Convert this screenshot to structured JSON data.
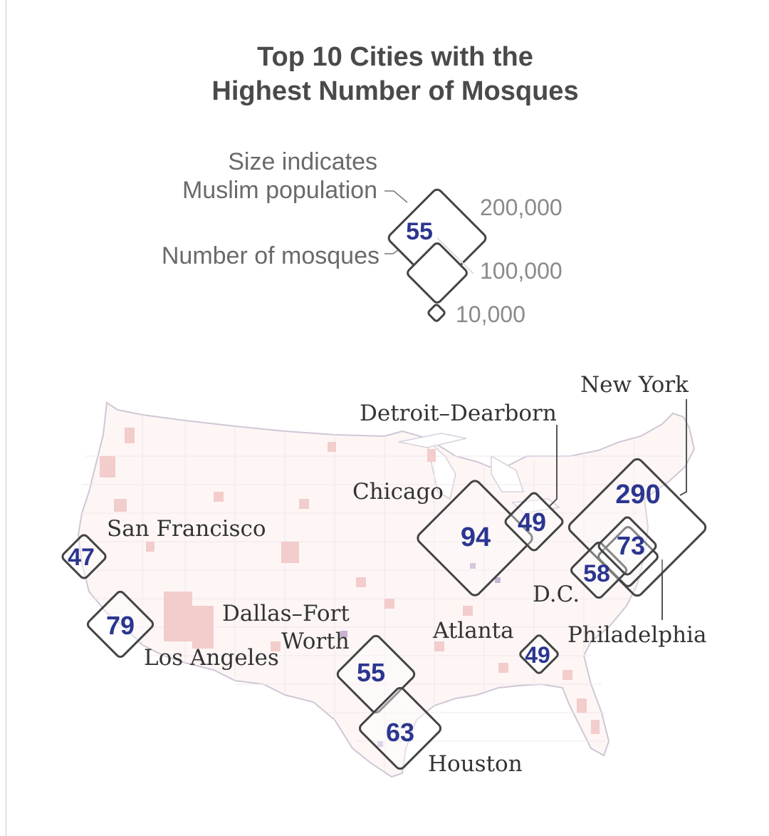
{
  "title": {
    "line1": "Top 10 Cities with the",
    "line2": "Highest Number of Mosques"
  },
  "legend": {
    "size_label_line1": "Size indicates",
    "size_label_line2": "Muslim population",
    "count_label": "Number of mosques",
    "sample_count": "55",
    "population_ticks": [
      "200,000",
      "100,000",
      "10,000"
    ]
  },
  "colors": {
    "count_text": "#2b3690",
    "diamond_stroke": "#444444",
    "county_shading": "#f2c9c9",
    "county_shading_dark": "#b9a3c8"
  },
  "cities": [
    {
      "name": "New York",
      "mosques": "290"
    },
    {
      "name": "Chicago",
      "mosques": "94"
    },
    {
      "name": "Los Angeles",
      "mosques": "79"
    },
    {
      "name": "Philadelphia",
      "mosques": "73"
    },
    {
      "name": "Houston",
      "mosques": "63"
    },
    {
      "name": "D.C.",
      "mosques": "58"
    },
    {
      "name": "Dallas–Fort Worth",
      "name_line1": "Dallas–Fort",
      "name_line2": "Worth",
      "mosques": "55"
    },
    {
      "name": "Detroit–Dearborn",
      "mosques": "49"
    },
    {
      "name": "Atlanta",
      "mosques": "49"
    },
    {
      "name": "San Francisco",
      "mosques": "47"
    }
  ]
}
